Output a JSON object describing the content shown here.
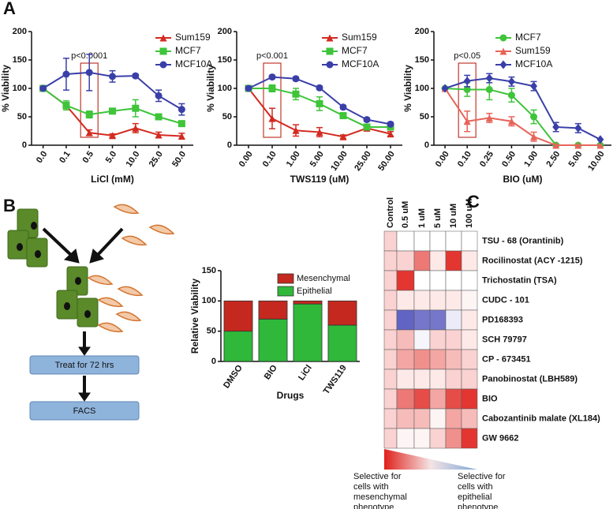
{
  "panel_labels": [
    "A",
    "B",
    "C"
  ],
  "diagram": {
    "steps": [
      "Treat for 72  hrs",
      "FACS"
    ]
  },
  "chart_data": [
    {
      "type": "line",
      "xlabel": "LiCl (mM)",
      "ylabel": "% Viability",
      "categories": [
        "0.0",
        "0.1",
        "0.5",
        "5.0",
        "10.0",
        "25.0",
        "50.0"
      ],
      "ylim": [
        0,
        200
      ],
      "yticks": [
        0,
        50,
        100,
        150,
        200
      ],
      "legend": "upper right",
      "annotation": "p<0.0001",
      "series": [
        {
          "name": "Sum159",
          "color": "#d42a20",
          "marker": "triangle",
          "values": [
            100,
            70,
            22,
            17,
            30,
            18,
            16
          ],
          "errors": [
            0,
            5,
            5,
            3,
            8,
            5,
            5
          ]
        },
        {
          "name": "MCF7",
          "color": "#3fc43a",
          "marker": "square",
          "values": [
            100,
            70,
            54,
            60,
            65,
            50,
            38
          ],
          "errors": [
            0,
            8,
            6,
            4,
            15,
            5,
            4
          ]
        },
        {
          "name": "MCF10A",
          "color": "#3a3fa8",
          "marker": "circle",
          "values": [
            100,
            125,
            128,
            121,
            122,
            87,
            63
          ],
          "errors": [
            0,
            28,
            32,
            10,
            3,
            10,
            10
          ]
        }
      ]
    },
    {
      "type": "line",
      "xlabel": "TWS119 (uM)",
      "ylabel": "% Viability",
      "categories": [
        "0.00",
        "0.10",
        "1.00",
        "5.00",
        "10.00",
        "25.00",
        "50.00"
      ],
      "ylim": [
        0,
        200
      ],
      "yticks": [
        0,
        50,
        100,
        150,
        200
      ],
      "legend": "upper right",
      "annotation": "p<0.001",
      "series": [
        {
          "name": "Sum159",
          "color": "#d42a20",
          "marker": "triangle",
          "values": [
            100,
            47,
            26,
            23,
            15,
            30,
            20
          ],
          "errors": [
            0,
            18,
            10,
            8,
            3,
            4,
            4
          ]
        },
        {
          "name": "MCF7",
          "color": "#3fc43a",
          "marker": "square",
          "values": [
            100,
            100,
            90,
            73,
            52,
            32,
            32
          ],
          "errors": [
            0,
            6,
            10,
            12,
            5,
            3,
            3
          ]
        },
        {
          "name": "MCF10A",
          "color": "#3a3fa8",
          "marker": "circle",
          "values": [
            100,
            120,
            117,
            101,
            67,
            45,
            37
          ],
          "errors": [
            0,
            3,
            3,
            3,
            3,
            3,
            3
          ]
        }
      ]
    },
    {
      "type": "line",
      "xlabel": "BIO (uM)",
      "ylabel": "% Viability",
      "categories": [
        "0.00",
        "0.10",
        "0.25",
        "0.50",
        "1.00",
        "2.50",
        "5.00",
        "10.00"
      ],
      "ylim": [
        0,
        200
      ],
      "yticks": [
        0,
        50,
        100,
        150,
        200
      ],
      "legend": "upper right",
      "annotation": "p<0.05",
      "series": [
        {
          "name": "MCF7",
          "color": "#3fc43a",
          "marker": "circle",
          "values": [
            100,
            98,
            98,
            88,
            50,
            0,
            0,
            0
          ],
          "errors": [
            0,
            12,
            18,
            12,
            12,
            0,
            0,
            0
          ]
        },
        {
          "name": "Sum159",
          "color": "#e8645a",
          "marker": "triangle",
          "values": [
            100,
            42,
            48,
            42,
            15,
            0,
            0,
            0
          ],
          "errors": [
            0,
            18,
            8,
            8,
            8,
            0,
            0,
            0
          ]
        },
        {
          "name": "MCF10A",
          "color": "#3a3fa8",
          "marker": "diamond",
          "values": [
            100,
            113,
            118,
            112,
            104,
            32,
            30,
            10
          ],
          "errors": [
            0,
            10,
            8,
            8,
            8,
            8,
            8,
            0
          ]
        }
      ]
    },
    {
      "type": "stacked_bar",
      "xlabel": "Drugs",
      "ylabel": "Relative Viability",
      "categories": [
        "DMSO",
        "BIO",
        "LiCl",
        "TWS119"
      ],
      "ylim": [
        0,
        150
      ],
      "yticks": [
        0,
        50,
        100,
        150
      ],
      "series": [
        {
          "name": "Epithelial",
          "color": "#2fb83a",
          "values": [
            50,
            70,
            95,
            60
          ]
        },
        {
          "name": "Mesenchymal",
          "color": "#c4281f",
          "values": [
            50,
            30,
            5,
            40
          ]
        }
      ]
    },
    {
      "type": "heatmap",
      "columns": [
        "Control",
        "0.5 uM",
        "1 uM",
        "5 uM",
        "10 uM",
        "100 uM"
      ],
      "rows": [
        "TSU - 68 (Orantinib)",
        "Rocilinostat (ACY -1215)",
        "Trichostatin (TSA)",
        "CUDC - 101",
        "PD168393",
        "SCH 79797",
        "CP - 673451",
        "Panobinostat (LBH589)",
        "BIO",
        "Cabozantinib malate (XL184)",
        "GW 9662"
      ],
      "values": [
        [
          0.2,
          0,
          0,
          0,
          0,
          0
        ],
        [
          0.2,
          0.2,
          0.6,
          0.1,
          0.9,
          0.1
        ],
        [
          0.2,
          0.9,
          0,
          0,
          0,
          0
        ],
        [
          0.2,
          0.1,
          0.1,
          0.1,
          0.1,
          0.05
        ],
        [
          0.2,
          -0.8,
          -0.7,
          -0.7,
          -0.1,
          0.1
        ],
        [
          0.2,
          0.3,
          -0.05,
          0.2,
          0.2,
          0.1
        ],
        [
          0.2,
          0.4,
          0.5,
          0.4,
          0.3,
          0.2
        ],
        [
          0.2,
          0.1,
          0.1,
          0.1,
          0.2,
          0.2
        ],
        [
          0.2,
          0.6,
          0.8,
          0.4,
          0.8,
          0.9
        ],
        [
          0.2,
          0.3,
          0.3,
          0.05,
          0.4,
          0.3
        ],
        [
          0.2,
          0.05,
          0.05,
          0.2,
          0.5,
          0.9
        ]
      ],
      "color_range": [
        -1,
        1
      ],
      "low_color": "#3b3db5",
      "high_color": "#e0201a",
      "legend_left": [
        "Selective for",
        "cells with",
        "mesenchymal",
        "phenotype"
      ],
      "legend_right": [
        "Selective for",
        "cells with",
        "epithelial",
        "phenotype"
      ]
    }
  ]
}
